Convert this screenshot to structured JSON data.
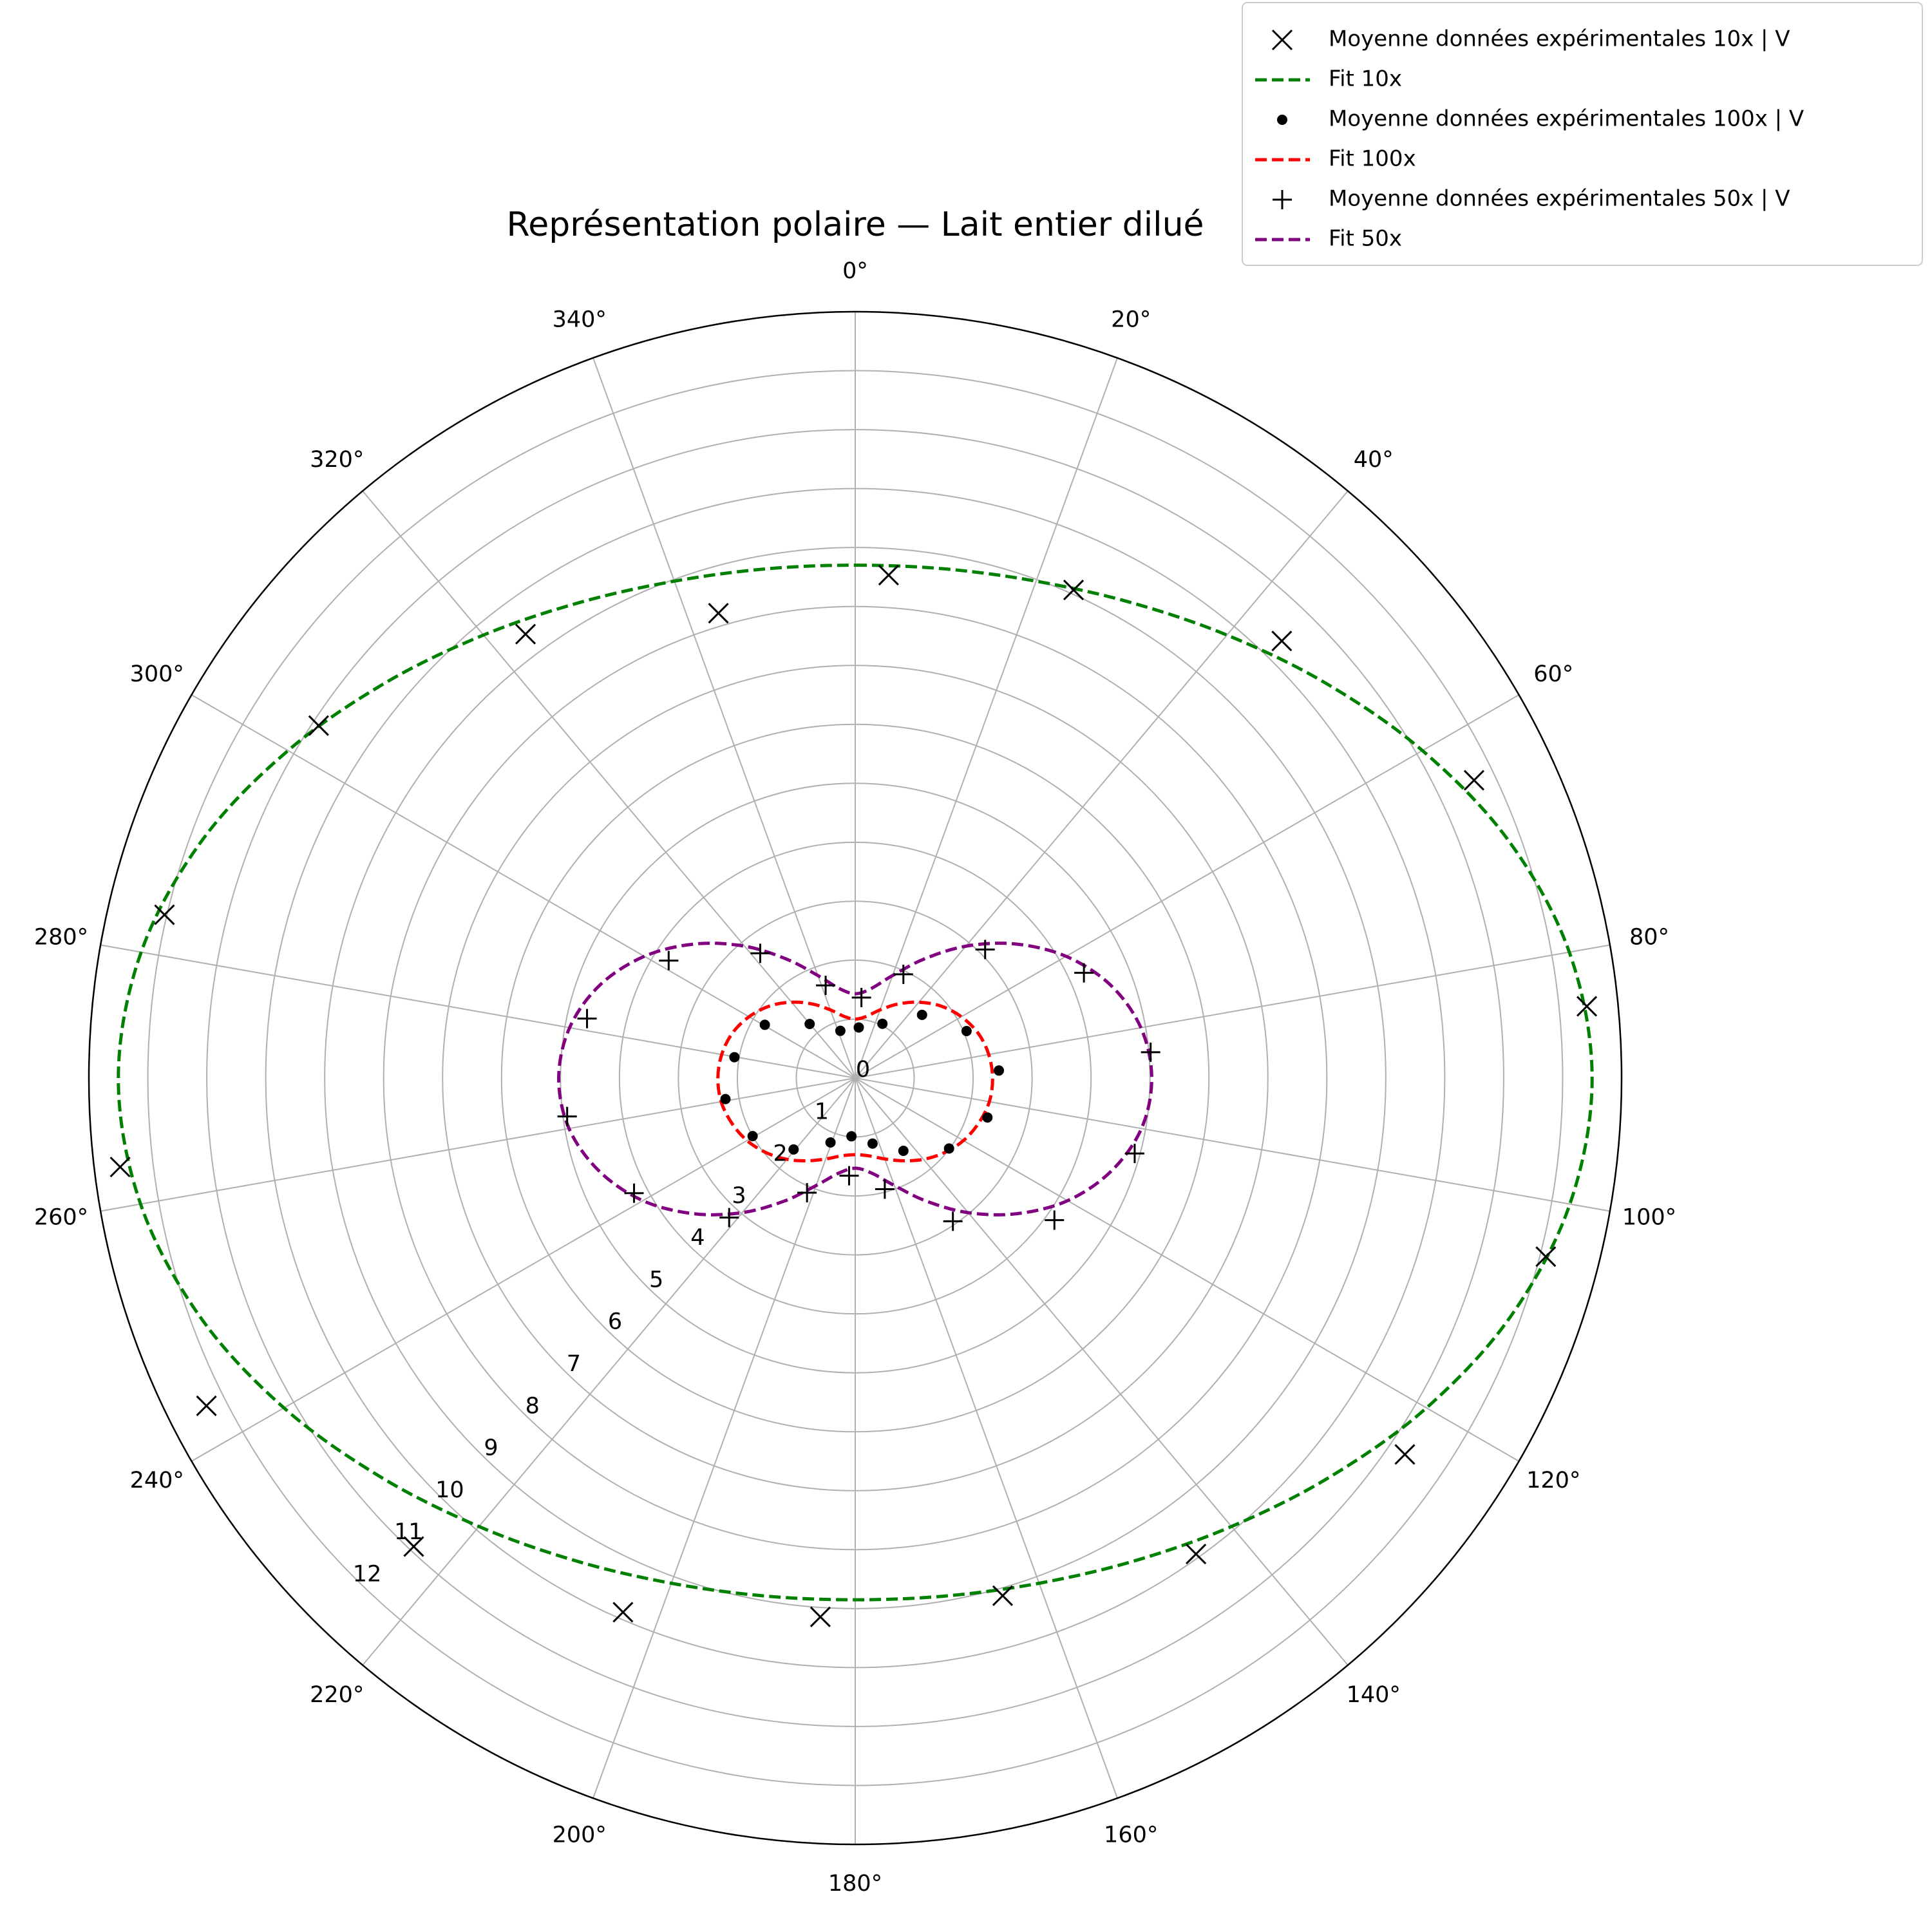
{
  "chart_data": {
    "type": "polar",
    "title": "Représentation polaire — Lait entier dilué",
    "theta_zero_location": "N",
    "theta_direction": "clockwise",
    "thetaticks": [
      {
        "value": 0,
        "label": "0°"
      },
      {
        "value": 20,
        "label": "20°"
      },
      {
        "value": 40,
        "label": "40°"
      },
      {
        "value": 60,
        "label": "60°"
      },
      {
        "value": 80,
        "label": "80°"
      },
      {
        "value": 100,
        "label": "100°"
      },
      {
        "value": 120,
        "label": "120°"
      },
      {
        "value": 140,
        "label": "140°"
      },
      {
        "value": 160,
        "label": "160°"
      },
      {
        "value": 180,
        "label": "180°"
      },
      {
        "value": 200,
        "label": "200°"
      },
      {
        "value": 220,
        "label": "220°"
      },
      {
        "value": 240,
        "label": "240°"
      },
      {
        "value": 260,
        "label": "260°"
      },
      {
        "value": 280,
        "label": "280°"
      },
      {
        "value": 300,
        "label": "300°"
      },
      {
        "value": 320,
        "label": "320°"
      },
      {
        "value": 340,
        "label": "340°"
      }
    ],
    "ylim": [
      0,
      13
    ],
    "yticks": [
      0,
      1,
      2,
      3,
      4,
      5,
      6,
      7,
      8,
      9,
      10,
      11,
      12
    ],
    "grid": true,
    "legend": "upper right",
    "series": [
      {
        "name": "Moyenne données expérimentales 10x | V",
        "color": "#000000",
        "marker": "x",
        "theta": [
          3.8,
          24.1,
          44.3,
          64.3,
          84.4,
          104.5,
          124.4,
          144.4,
          164.1,
          183.7,
          203.5,
          223.3,
          243.2,
          263.1,
          283.3,
          303.3,
          323.4,
          343.6
        ],
        "values": [
          8.55,
          9.07,
          10.36,
          11.65,
          12.47,
          12.1,
          11.3,
          9.93,
          9.13,
          9.16,
          9.88,
          10.92,
          12.33,
          12.56,
          12.04,
          10.89,
          9.38,
          8.22
        ]
      },
      {
        "name": "Fit 10x",
        "color": "#008000",
        "linestyle": "dashed",
        "theta": [
          0,
          10,
          20,
          30,
          40,
          50,
          60,
          70,
          80,
          90,
          100,
          110,
          120,
          130,
          140,
          150,
          160,
          170,
          180,
          190,
          200,
          210,
          220,
          230,
          240,
          250,
          260,
          270,
          280,
          290,
          300,
          310,
          320,
          330,
          340,
          350
        ],
        "values": [
          8.7,
          8.77,
          8.97,
          9.32,
          9.81,
          10.42,
          11.11,
          11.79,
          12.3,
          12.5,
          12.31,
          11.83,
          11.19,
          10.52,
          9.93,
          9.46,
          9.12,
          8.92,
          8.85,
          8.92,
          9.12,
          9.46,
          9.93,
          10.52,
          11.19,
          11.83,
          12.31,
          12.5,
          12.3,
          11.79,
          11.11,
          10.42,
          9.81,
          9.32,
          8.97,
          8.77
        ]
      },
      {
        "name": "Moyenne données expérimentales 100x | V",
        "color": "#000000",
        "marker": "dot",
        "theta": [
          4,
          26.6,
          46.6,
          67.1,
          87,
          106.6,
          126.9,
          146.5,
          165.2,
          183.7,
          201,
          220.8,
          240.5,
          260.8,
          279.8,
          300.5,
          319.9,
          342.5
        ],
        "values": [
          0.86,
          1.03,
          1.56,
          2.05,
          2.44,
          2.34,
          1.99,
          1.48,
          1.15,
          0.99,
          1.17,
          1.6,
          2.0,
          2.23,
          2.08,
          1.78,
          1.2,
          0.84
        ]
      },
      {
        "name": "Fit 100x",
        "color": "#ff0000",
        "linestyle": "dashed",
        "theta": [
          0,
          10,
          20,
          30,
          40,
          50,
          60,
          70,
          80,
          90,
          100,
          110,
          120,
          130,
          140,
          150,
          160,
          170,
          180,
          190,
          200,
          210,
          220,
          230,
          240,
          250,
          260,
          270,
          280,
          290,
          300,
          310,
          320,
          330,
          340,
          350
        ],
        "values": [
          1.0,
          1.06,
          1.23,
          1.45,
          1.68,
          1.9,
          2.08,
          2.22,
          2.3,
          2.33,
          2.31,
          2.23,
          2.12,
          1.97,
          1.8,
          1.62,
          1.46,
          1.34,
          1.3,
          1.34,
          1.46,
          1.62,
          1.8,
          1.97,
          2.12,
          2.23,
          2.31,
          2.33,
          2.3,
          2.22,
          2.08,
          1.9,
          1.68,
          1.45,
          1.23,
          1.06
        ]
      },
      {
        "name": "Moyenne données expérimentales 50x | V",
        "color": "#000000",
        "marker": "plus",
        "theta": [
          4.4,
          24.9,
          45.3,
          65.3,
          85,
          105.1,
          125.5,
          145.7,
          165.1,
          183.6,
          202.8,
          222.1,
          242.5,
          262.4,
          282.5,
          302.2,
          322.7,
          342.3
        ],
        "values": [
          1.37,
          1.94,
          3.1,
          4.27,
          5.03,
          4.91,
          4.15,
          2.94,
          1.95,
          1.66,
          2.11,
          3.19,
          4.23,
          4.93,
          4.66,
          3.74,
          2.66,
          1.65
        ]
      },
      {
        "name": "Fit 50x",
        "color": "#800080",
        "linestyle": "dashed",
        "theta": [
          0,
          10,
          20,
          30,
          40,
          50,
          60,
          70,
          80,
          90,
          100,
          110,
          120,
          130,
          140,
          150,
          160,
          170,
          180,
          190,
          200,
          210,
          220,
          230,
          240,
          250,
          260,
          270,
          280,
          290,
          300,
          310,
          320,
          330,
          340,
          350
        ],
        "values": [
          1.43,
          1.54,
          1.85,
          2.33,
          2.92,
          3.54,
          4.13,
          4.61,
          4.92,
          5.03,
          4.93,
          4.62,
          4.16,
          3.58,
          2.98,
          2.41,
          1.94,
          1.64,
          1.53,
          1.64,
          1.94,
          2.41,
          2.98,
          3.58,
          4.16,
          4.62,
          4.93,
          5.03,
          4.92,
          4.61,
          4.13,
          3.54,
          2.92,
          2.33,
          1.85,
          1.54
        ]
      }
    ]
  }
}
